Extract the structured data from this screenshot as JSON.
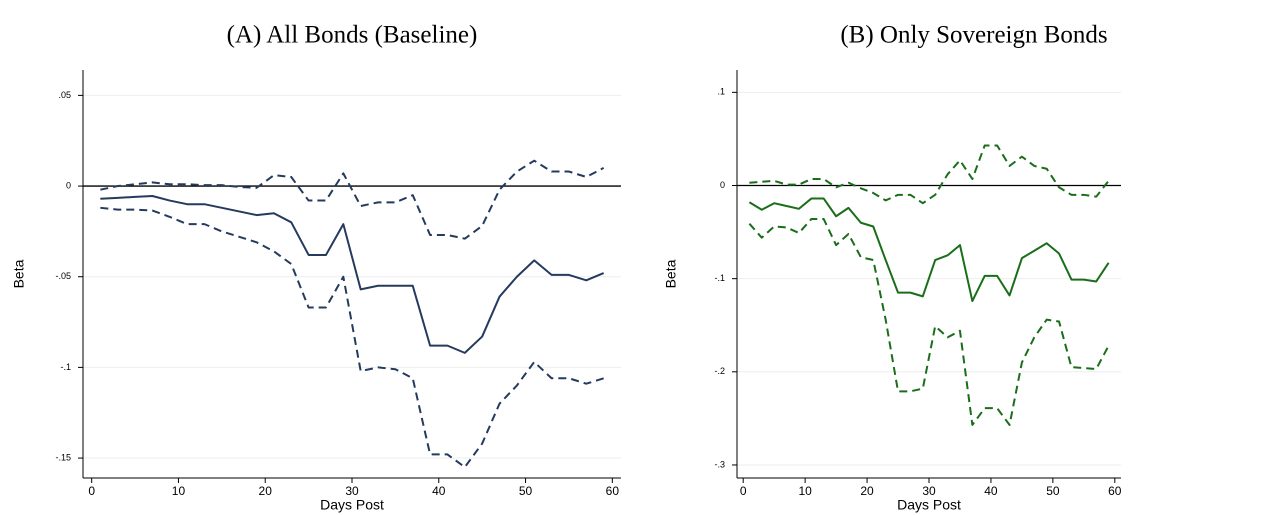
{
  "chart_data": [
    {
      "type": "line",
      "title": "(A) All Bonds (Baseline)",
      "x_label": "Days Post",
      "y_label": "Beta",
      "x": [
        1,
        3,
        5,
        7,
        9,
        11,
        13,
        15,
        17,
        19,
        21,
        23,
        25,
        27,
        29,
        31,
        33,
        35,
        37,
        39,
        41,
        43,
        45,
        47,
        49,
        51,
        53,
        55,
        57,
        59
      ],
      "xlim": [
        -1,
        61
      ],
      "xticks": [
        0,
        10,
        20,
        30,
        40,
        50,
        60
      ],
      "ylim": [
        -0.161,
        0.064
      ],
      "yticks": [
        {
          "value": 0.05,
          "label": ".05"
        },
        0,
        {
          "value": -0.05,
          "label": "-.05"
        },
        {
          "value": -0.1,
          "label": "-.1"
        },
        {
          "value": -0.15,
          "label": "-.15"
        }
      ],
      "grid": true,
      "reference_line": 0,
      "series": [
        {
          "color": "#243b5e",
          "style": "solid",
          "values": [
            -0.007,
            -0.0065,
            -0.006,
            -0.0055,
            -0.008,
            -0.01,
            -0.01,
            -0.012,
            -0.014,
            -0.016,
            -0.015,
            -0.02,
            -0.038,
            -0.038,
            -0.021,
            -0.057,
            -0.055,
            -0.055,
            -0.055,
            -0.088,
            -0.088,
            -0.092,
            -0.083,
            -0.061,
            -0.05,
            -0.041,
            -0.049,
            -0.049,
            -0.052,
            -0.048
          ]
        },
        {
          "color": "#243b5e",
          "style": "dashed",
          "values": [
            -0.002,
            0.0,
            0.001,
            0.002,
            0.001,
            0.001,
            0.0005,
            0.0005,
            -0.0005,
            -0.001,
            0.006,
            0.005,
            -0.008,
            -0.008,
            0.007,
            -0.011,
            -0.009,
            -0.009,
            -0.005,
            -0.027,
            -0.027,
            -0.029,
            -0.022,
            -0.002,
            0.008,
            0.014,
            0.008,
            0.008,
            0.005,
            0.01
          ]
        },
        {
          "color": "#243b5e",
          "style": "dashed",
          "values": [
            -0.012,
            -0.013,
            -0.013,
            -0.0135,
            -0.017,
            -0.021,
            -0.021,
            -0.025,
            -0.028,
            -0.031,
            -0.036,
            -0.043,
            -0.067,
            -0.067,
            -0.05,
            -0.102,
            -0.1,
            -0.101,
            -0.106,
            -0.148,
            -0.148,
            -0.155,
            -0.142,
            -0.12,
            -0.11,
            -0.097,
            -0.106,
            -0.106,
            -0.109,
            -0.106
          ]
        }
      ]
    },
    {
      "type": "line",
      "title": "(B) Only Sovereign Bonds",
      "x_label": "Days Post",
      "y_label": "Beta",
      "x": [
        1,
        3,
        5,
        7,
        9,
        11,
        13,
        15,
        17,
        19,
        21,
        23,
        25,
        27,
        29,
        31,
        33,
        35,
        37,
        39,
        41,
        43,
        45,
        47,
        49,
        51,
        53,
        55,
        57,
        59
      ],
      "xlim": [
        -1,
        61
      ],
      "xticks": [
        0,
        10,
        20,
        30,
        40,
        50,
        60
      ],
      "ylim": [
        -0.314,
        0.124
      ],
      "yticks": [
        {
          "value": 0.1,
          "label": ".1"
        },
        0,
        {
          "value": -0.1,
          "label": "-.1"
        },
        {
          "value": -0.2,
          "label": "-.2"
        },
        {
          "value": -0.3,
          "label": "-.3"
        }
      ],
      "grid": true,
      "reference_line": 0,
      "series": [
        {
          "color": "#1a6e1a",
          "style": "solid",
          "values": [
            -0.018,
            -0.026,
            -0.019,
            -0.022,
            -0.025,
            -0.014,
            -0.014,
            -0.033,
            -0.024,
            -0.04,
            -0.044,
            -0.08,
            -0.115,
            -0.115,
            -0.119,
            -0.08,
            -0.075,
            -0.064,
            -0.124,
            -0.097,
            -0.097,
            -0.118,
            -0.078,
            -0.07,
            -0.062,
            -0.073,
            -0.101,
            -0.101,
            -0.103,
            -0.083
          ]
        },
        {
          "color": "#1a6e1a",
          "style": "dashed",
          "values": [
            0.003,
            0.004,
            0.005,
            0.001,
            0.001,
            0.007,
            0.007,
            -0.002,
            0.003,
            -0.003,
            -0.008,
            -0.016,
            -0.01,
            -0.01,
            -0.019,
            -0.01,
            0.012,
            0.027,
            0.007,
            0.043,
            0.043,
            0.021,
            0.031,
            0.021,
            0.018,
            -0.002,
            -0.01,
            -0.01,
            -0.012,
            0.005
          ]
        },
        {
          "color": "#1a6e1a",
          "style": "dashed",
          "values": [
            -0.041,
            -0.056,
            -0.044,
            -0.045,
            -0.051,
            -0.036,
            -0.036,
            -0.064,
            -0.052,
            -0.077,
            -0.08,
            -0.144,
            -0.221,
            -0.221,
            -0.218,
            -0.151,
            -0.163,
            -0.156,
            -0.257,
            -0.239,
            -0.239,
            -0.257,
            -0.19,
            -0.163,
            -0.144,
            -0.146,
            -0.195,
            -0.196,
            -0.197,
            -0.172
          ]
        }
      ]
    }
  ]
}
